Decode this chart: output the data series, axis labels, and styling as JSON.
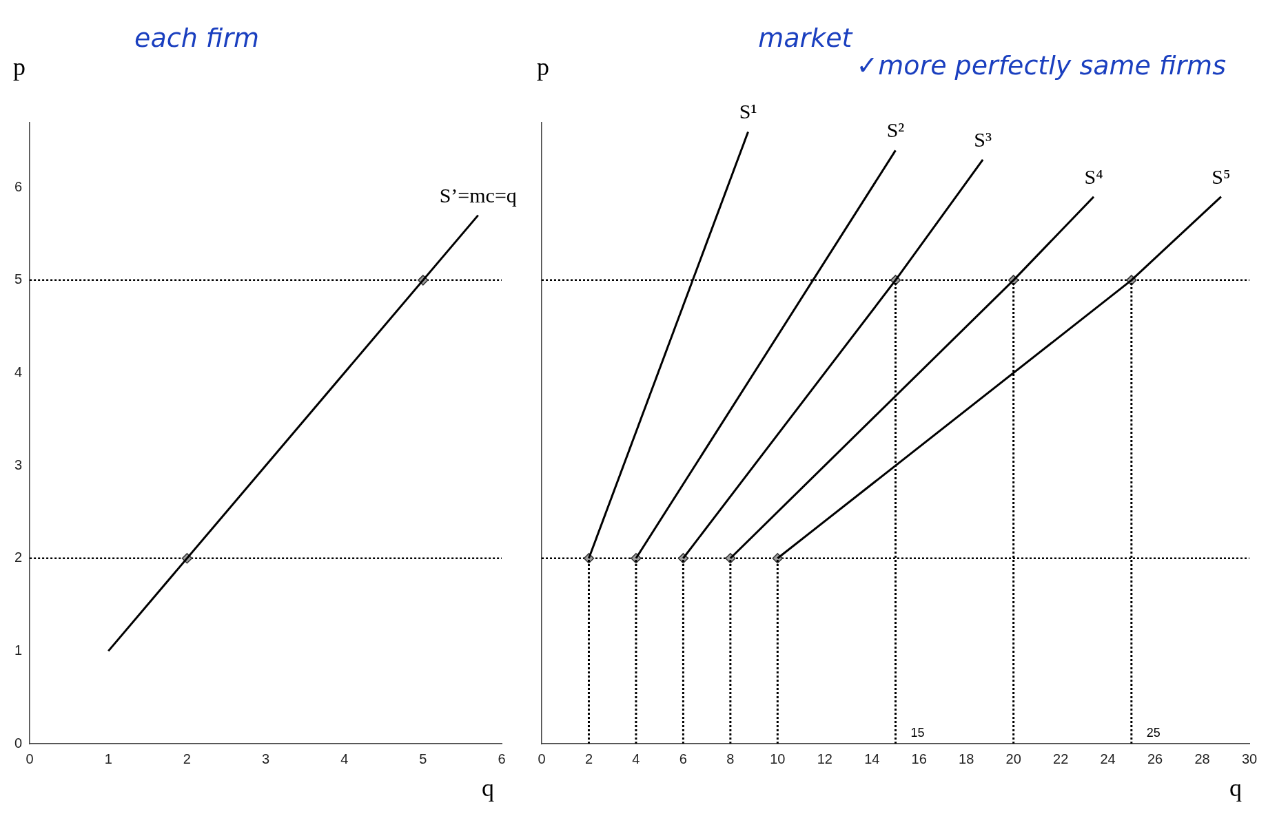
{
  "chart_data": [
    {
      "type": "line",
      "xlabel": "q",
      "ylabel": "p",
      "xlim": [
        0,
        6
      ],
      "xticks": [
        0,
        1,
        2,
        3,
        4,
        5,
        6
      ],
      "ylim": [
        0,
        6.7
      ],
      "yticks": [
        0,
        1,
        2,
        3,
        4,
        5,
        6
      ],
      "grid": false,
      "legend": false,
      "ref_lines": [
        {
          "axis": "y",
          "value": 2,
          "line_style": "dotted",
          "color": "#000000"
        },
        {
          "axis": "y",
          "value": 5,
          "line_style": "dotted",
          "color": "#000000"
        }
      ],
      "annotations": [
        "each firm"
      ],
      "series": [
        {
          "type": "line",
          "name": "S’=mc=q",
          "color": "#000000",
          "x": [
            1,
            5.7
          ],
          "values": [
            1,
            5.7
          ]
        },
        {
          "type": "scatter",
          "color": "#9e9e9e",
          "marker": "diamond",
          "x": [
            2,
            5
          ],
          "values": [
            2,
            5
          ]
        }
      ]
    },
    {
      "type": "line",
      "xlabel": "q",
      "ylabel": "p",
      "xlim": [
        0,
        30
      ],
      "xticks": [
        0,
        2,
        4,
        6,
        8,
        10,
        12,
        14,
        16,
        18,
        20,
        22,
        24,
        26,
        28,
        30
      ],
      "ylim": [
        0,
        6.7
      ],
      "tick_labels": "x",
      "grid": false,
      "legend": false,
      "ref_lines": [
        {
          "axis": "y",
          "value": 2,
          "line_style": "dotted",
          "color": "#000000"
        },
        {
          "axis": "y",
          "value": 5,
          "line_style": "dotted",
          "color": "#000000"
        }
      ],
      "annotations": [
        "market",
        "✓more perfectly same firms",
        {
          "text": "15",
          "x": 15,
          "y": 0
        },
        {
          "text": "25",
          "x": 25,
          "y": 0
        }
      ],
      "series": [
        {
          "type": "line",
          "name": "S¹",
          "color": "#000000",
          "x": [
            2,
            8.75
          ],
          "values": [
            2,
            6.6
          ]
        },
        {
          "type": "line",
          "name": "S²",
          "color": "#000000",
          "x": [
            4,
            15
          ],
          "values": [
            2,
            6.4
          ]
        },
        {
          "type": "line",
          "name": "S³",
          "color": "#000000",
          "x": [
            6,
            15,
            18.7
          ],
          "values": [
            2,
            5,
            6.3
          ]
        },
        {
          "type": "line",
          "name": "S⁴",
          "color": "#000000",
          "x": [
            8,
            20,
            23.4
          ],
          "values": [
            2,
            5,
            5.9
          ]
        },
        {
          "type": "line",
          "name": "S⁵",
          "color": "#000000",
          "x": [
            10,
            25,
            28.8
          ],
          "values": [
            2,
            5,
            5.9
          ]
        },
        {
          "type": "line",
          "color": "#000000",
          "line_style": "dotted",
          "x": [
            2,
            2
          ],
          "values": [
            0,
            2
          ]
        },
        {
          "type": "line",
          "color": "#000000",
          "line_style": "dotted",
          "x": [
            4,
            4
          ],
          "values": [
            0,
            2
          ]
        },
        {
          "type": "line",
          "color": "#000000",
          "line_style": "dotted",
          "x": [
            6,
            6
          ],
          "values": [
            0,
            2
          ]
        },
        {
          "type": "line",
          "color": "#000000",
          "line_style": "dotted",
          "x": [
            8,
            8
          ],
          "values": [
            0,
            2
          ]
        },
        {
          "type": "line",
          "color": "#000000",
          "line_style": "dotted",
          "x": [
            10,
            10
          ],
          "values": [
            0,
            2
          ]
        },
        {
          "type": "line",
          "color": "#000000",
          "line_style": "dotted",
          "x": [
            15,
            15
          ],
          "values": [
            0,
            5
          ]
        },
        {
          "type": "line",
          "color": "#000000",
          "line_style": "dotted",
          "x": [
            20,
            20
          ],
          "values": [
            0,
            5
          ]
        },
        {
          "type": "line",
          "color": "#000000",
          "line_style": "dotted",
          "x": [
            25,
            25
          ],
          "values": [
            0,
            5
          ]
        },
        {
          "type": "scatter",
          "color": "#9e9e9e",
          "marker": "diamond",
          "x": [
            2,
            4,
            6,
            8,
            10,
            15,
            20,
            25
          ],
          "values": [
            2,
            2,
            2,
            2,
            2,
            5,
            5,
            5
          ]
        }
      ]
    }
  ]
}
